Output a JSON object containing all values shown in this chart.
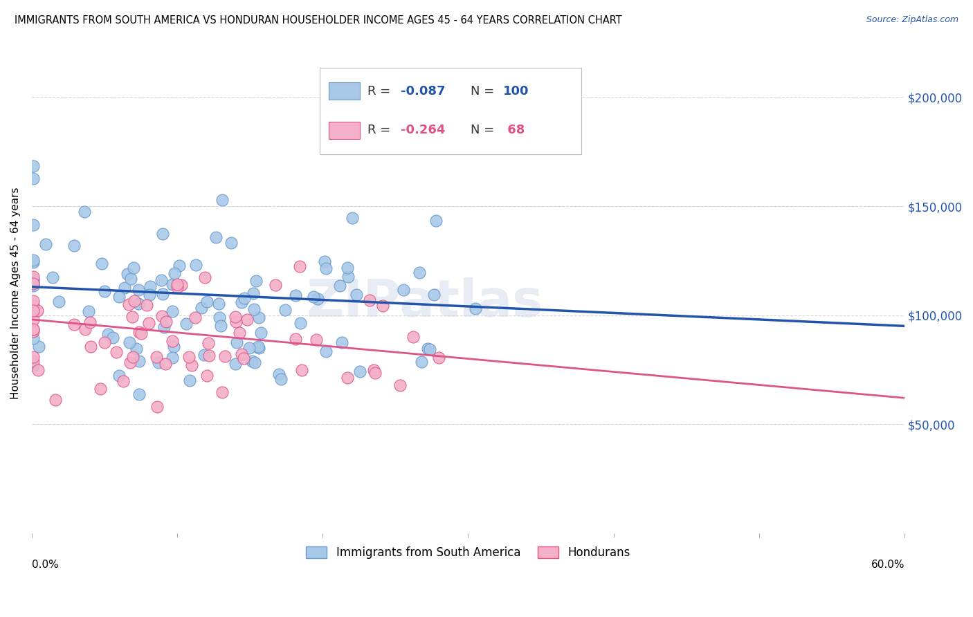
{
  "title": "IMMIGRANTS FROM SOUTH AMERICA VS HONDURAN HOUSEHOLDER INCOME AGES 45 - 64 YEARS CORRELATION CHART",
  "source": "Source: ZipAtlas.com",
  "ylabel": "Householder Income Ages 45 - 64 years",
  "y_tick_labels": [
    "$50,000",
    "$100,000",
    "$150,000",
    "$200,000"
  ],
  "y_tick_values": [
    50000,
    100000,
    150000,
    200000
  ],
  "ylim": [
    0,
    220000
  ],
  "xlim": [
    0.0,
    0.6
  ],
  "series1": {
    "label": "Immigrants from South America",
    "R": -0.087,
    "N": 100,
    "color": "#a8c8e8",
    "line_color": "#2255aa",
    "marker_edge": "#6699cc"
  },
  "series2": {
    "label": "Hondurans",
    "R": -0.264,
    "N": 68,
    "color": "#f4b0c8",
    "line_color": "#dd5588",
    "marker_edge": "#dd5588"
  },
  "background_color": "#ffffff",
  "grid_color": "#cccccc",
  "watermark": "ZIPatlas",
  "title_fontsize": 10.5,
  "source_fontsize": 9
}
